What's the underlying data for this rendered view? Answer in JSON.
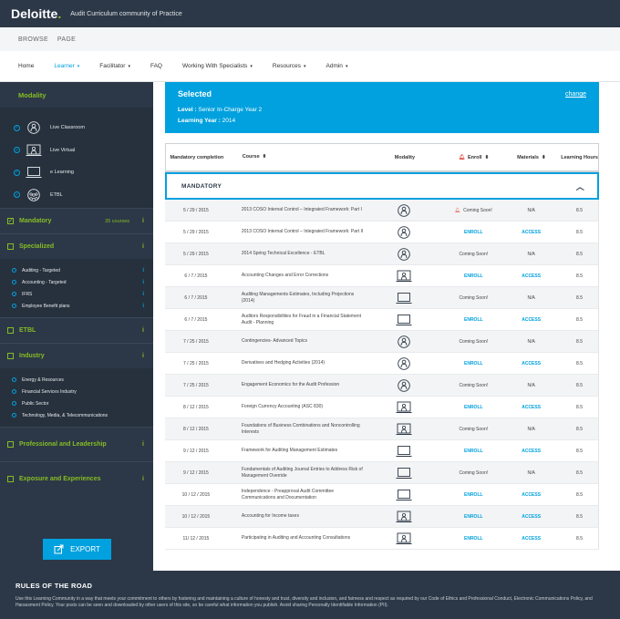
{
  "header": {
    "logo": "Deloitte",
    "logo_dot": ".",
    "app_title": "Audit Curriculum community of Practice"
  },
  "browse": {
    "label1": "BROWSE",
    "label2": "PAGE"
  },
  "nav": [
    {
      "label": "Home",
      "dropdown": false,
      "active": false
    },
    {
      "label": "Learner",
      "dropdown": true,
      "active": true
    },
    {
      "label": "Facilitator",
      "dropdown": true,
      "active": false
    },
    {
      "label": "FAQ",
      "dropdown": false,
      "active": false
    },
    {
      "label": "Working With Specialists",
      "dropdown": true,
      "active": false
    },
    {
      "label": "Resources",
      "dropdown": true,
      "active": false
    },
    {
      "label": "Admin",
      "dropdown": true,
      "active": false
    }
  ],
  "sidebar": {
    "modality_title": "Modality",
    "modalities": [
      {
        "label": "Live Classroom",
        "icon": "person-icon"
      },
      {
        "label": "Live Virtual",
        "icon": "monitor-person-icon"
      },
      {
        "label": "e Learning",
        "icon": "laptop-icon"
      },
      {
        "label": "ETBL",
        "icon": "group-icon"
      }
    ],
    "mandatory": {
      "label": "Mandatory",
      "count": "35 courses",
      "info": "i"
    },
    "specialized": {
      "label": "Specialized",
      "info": "i",
      "items": [
        {
          "label": "Auditing - Targeted",
          "info": "i"
        },
        {
          "label": "Accounting - Targeted",
          "info": "i"
        },
        {
          "label": "IFRS",
          "info": "i"
        },
        {
          "label": "Employee Benefit plans",
          "info": "i"
        }
      ]
    },
    "etbl": {
      "label": "ETBL",
      "info": "i"
    },
    "industry": {
      "label": "Industry",
      "info": "i",
      "items": [
        {
          "label": "Energy & Resources"
        },
        {
          "label": "Financial Services Industry"
        },
        {
          "label": "Public Sector"
        },
        {
          "label": "Technology, Media, & Telecommunications"
        }
      ]
    },
    "professional": {
      "label": "Professional and Leadership",
      "info": "i"
    },
    "exposure": {
      "label": "Exposure and Experiences",
      "info": "i"
    },
    "export_label": "EXPORT"
  },
  "selected": {
    "title": "Selected",
    "level_label": "Level :",
    "level_value": "Senior In-Charge Year 2",
    "year_label": "Learning Year :",
    "year_value": "2014",
    "change_label": "change"
  },
  "table": {
    "headers": {
      "completion": "Mandatory completion",
      "course": "Course",
      "modality": "Modality",
      "enroll": "Enroll",
      "materials": "Materials",
      "hours": "Learning Hours"
    },
    "section_label": "MANDATORY",
    "rows": [
      {
        "date": "5 / 29 / 2015",
        "course": "2013 COSO Internal Control – Integrated Framework: Part I",
        "modality": "person-icon",
        "enroll": "Coming Soon!",
        "bell": true,
        "materials": "N/A",
        "hours": "8.5"
      },
      {
        "date": "5 / 29 / 2015",
        "course": "2013 COSO Internal Control – Integrated Framework: Part II",
        "modality": "person-icon",
        "enroll": "ENROLL",
        "bell": false,
        "materials": "ACCESS",
        "hours": "8.5"
      },
      {
        "date": "5 / 29 / 2015",
        "course": "2014 Spring Technical Excellence - ETBL",
        "modality": "person-icon",
        "enroll": "Coming Soon!",
        "bell": false,
        "materials": "N/A",
        "hours": "8.5"
      },
      {
        "date": "6 / 7 / 2015",
        "course": "Accounting Changes and Error Corrections",
        "modality": "monitor-person-icon",
        "enroll": "ENROLL",
        "bell": false,
        "materials": "ACCESS",
        "hours": "8.5"
      },
      {
        "date": "6 / 7 / 2015",
        "course": "Auditing Managements Estimates, Including Projections (2014)",
        "modality": "laptop-icon",
        "enroll": "Coming Soon!",
        "bell": false,
        "materials": "N/A",
        "hours": "8.5"
      },
      {
        "date": "6 / 7 / 2015",
        "course": "Auditors Responsibilities for Fraud in a Financial Statement Audit - Planning",
        "modality": "laptop-icon",
        "enroll": "ENROLL",
        "bell": false,
        "materials": "ACCESS",
        "hours": "8.5"
      },
      {
        "date": "7 / 25 / 2015",
        "course": "Contingencies- Advanced Topics",
        "modality": "person-icon",
        "enroll": "Coming Soon!",
        "bell": false,
        "materials": "N/A",
        "hours": "8.5"
      },
      {
        "date": "7 / 25 / 2015",
        "course": "Derivatives and Hedging Activities (2014)",
        "modality": "person-icon",
        "enroll": "ENROLL",
        "bell": false,
        "materials": "ACCESS",
        "hours": "8.5"
      },
      {
        "date": "7 / 25 / 2015",
        "course": "Engagement Economics for the Audit Profession",
        "modality": "person-icon",
        "enroll": "Coming Soon!",
        "bell": false,
        "materials": "N/A",
        "hours": "8.5"
      },
      {
        "date": "8 / 12 / 2015",
        "course": "Foreign Currency Accounting (ASC 830)",
        "modality": "monitor-person-icon",
        "enroll": "ENROLL",
        "bell": false,
        "materials": "ACCESS",
        "hours": "8.5"
      },
      {
        "date": "8 / 12 / 2015",
        "course": "Foundations of Business Combinations and Noncontrolling Interests",
        "modality": "monitor-person-icon",
        "enroll": "Coming Soon!",
        "bell": false,
        "materials": "N/A",
        "hours": "8.5"
      },
      {
        "date": "9 / 12 / 2015",
        "course": "Framework for Auditing Management Estimates",
        "modality": "laptop-icon",
        "enroll": "ENROLL",
        "bell": false,
        "materials": "ACCESS",
        "hours": "8.5"
      },
      {
        "date": "9 / 12 / 2015",
        "course": "Fundamentals of Auditing Journal Entries to Address Risk of Management Override",
        "modality": "laptop-icon",
        "enroll": "Coming Soon!",
        "bell": false,
        "materials": "N/A",
        "hours": "8.5"
      },
      {
        "date": "10 / 12 / 2015",
        "course": "Independence - Preapproval Audit Committee Communications and Documentation",
        "modality": "laptop-icon",
        "enroll": "ENROLL",
        "bell": false,
        "materials": "ACCESS",
        "hours": "8.5"
      },
      {
        "date": "10 / 12 / 2015",
        "course": "Accounting for Income taxes",
        "modality": "monitor-person-icon",
        "enroll": "ENROLL",
        "bell": false,
        "materials": "ACCESS",
        "hours": "8.5"
      },
      {
        "date": "11/ 12 / 2015",
        "course": "Participating in Auditing and Accounting Consultations",
        "modality": "monitor-person-icon",
        "enroll": "ENROLL",
        "bell": false,
        "materials": "ACCESS",
        "hours": "8.5"
      }
    ]
  },
  "footer": {
    "title": "RULES OF THE ROAD",
    "text": "Use this Learning Community in a way that meets your commitment to others by fostering and maintaining a culture of honesty and trust, diversity and inclusion, and fairness and respect as required by our Code of Ethics and Professional Conduct, Electronic Communications Policy, and Harassment Policy. Your posts can be seen and downloaded by other users of this site, so be careful what information you publish. Avoid sharing Personally Identifiable Information (PII)."
  }
}
